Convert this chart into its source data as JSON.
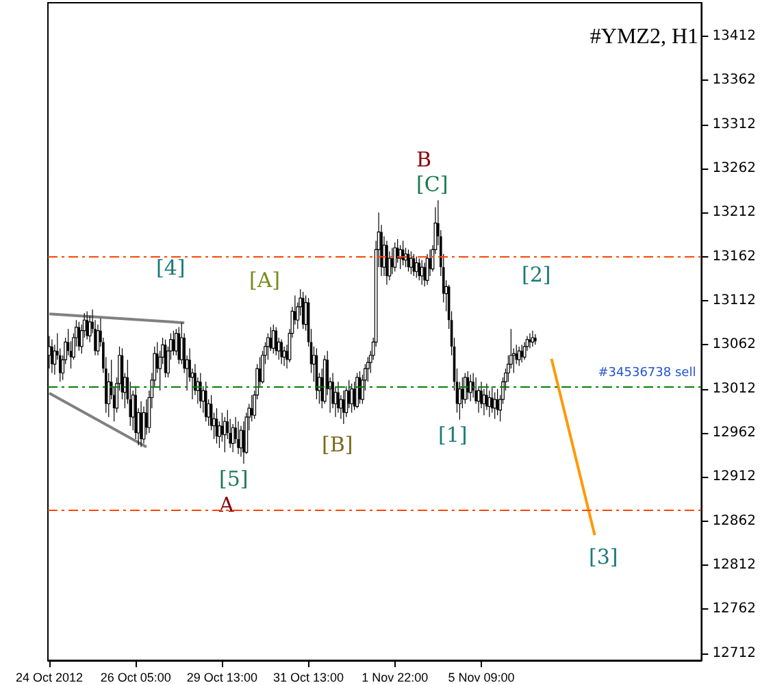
{
  "chart_data": {
    "type": "candlestick",
    "title": "#YMZ2, H1",
    "categories": [
      "24 Oct 2012",
      null,
      null,
      null,
      null,
      null,
      null,
      null,
      null,
      null,
      null,
      null,
      null,
      null,
      null,
      null,
      null,
      null,
      null,
      null,
      null,
      null,
      null,
      null,
      null,
      null,
      null,
      null,
      null,
      null,
      null,
      null,
      "26 Oct 05:00",
      null,
      null,
      null,
      null,
      null,
      null,
      null,
      null,
      null,
      null,
      null,
      null,
      null,
      null,
      null,
      null,
      null,
      null,
      null,
      null,
      null,
      null,
      null,
      null,
      null,
      null,
      null,
      null,
      null,
      null,
      null,
      "29 Oct 13:00",
      null,
      null,
      null,
      null,
      null,
      null,
      null,
      null,
      null,
      null,
      null,
      null,
      null,
      null,
      null,
      null,
      null,
      null,
      null,
      null,
      null,
      null,
      null,
      null,
      null,
      null,
      null,
      null,
      null,
      null,
      null,
      "31 Oct 13:00",
      null,
      null,
      null,
      null,
      null,
      null,
      null,
      null,
      null,
      null,
      null,
      null,
      null,
      null,
      null,
      null,
      null,
      null,
      null,
      null,
      null,
      null,
      null,
      null,
      null,
      null,
      null,
      null,
      null,
      null,
      null,
      "1 Nov 22:00",
      null,
      null,
      null,
      null,
      null,
      null,
      null,
      null,
      null,
      null,
      null,
      null,
      null,
      null,
      null,
      null,
      null,
      null,
      null,
      null,
      null,
      null,
      null,
      null,
      null,
      null,
      null,
      null,
      null,
      null,
      null,
      "5 Nov 09:00",
      null,
      null,
      null,
      null,
      null,
      null,
      null,
      null,
      null,
      null,
      null,
      null,
      null,
      null,
      null,
      null,
      null,
      null,
      null,
      null,
      null,
      null,
      null,
      null,
      null,
      null,
      null,
      null,
      null,
      null,
      null,
      null,
      null,
      null,
      null,
      null,
      null,
      null,
      null,
      null,
      null,
      null,
      null,
      null,
      null,
      null,
      null,
      null,
      null,
      null,
      null,
      null,
      null,
      null,
      null,
      null,
      null,
      null,
      null,
      null,
      null,
      null,
      null,
      null,
      null,
      null,
      null,
      null,
      null,
      null,
      null,
      null,
      null,
      null,
      null,
      null,
      null,
      null,
      null,
      null,
      null
    ],
    "series": [
      {
        "type": "candlestick",
        "color": "#000000",
        "ohlc": [
          [
            13050,
            13072,
            13035,
            13060
          ],
          [
            13060,
            13068,
            13030,
            13040
          ],
          [
            13040,
            13062,
            13028,
            13055
          ],
          [
            13055,
            13075,
            13045,
            13050
          ],
          [
            13050,
            13058,
            13020,
            13030
          ],
          [
            13030,
            13050,
            13022,
            13045
          ],
          [
            13045,
            13070,
            13040,
            13065
          ],
          [
            13065,
            13080,
            13050,
            13055
          ],
          [
            13055,
            13066,
            13035,
            13048
          ],
          [
            13048,
            13075,
            13045,
            13070
          ],
          [
            13070,
            13090,
            13060,
            13082
          ],
          [
            13082,
            13088,
            13055,
            13060
          ],
          [
            13060,
            13085,
            13052,
            13078
          ],
          [
            13078,
            13098,
            13070,
            13090
          ],
          [
            13090,
            13100,
            13068,
            13072
          ],
          [
            13072,
            13095,
            13065,
            13088
          ],
          [
            13088,
            13102,
            13075,
            13080
          ],
          [
            13080,
            13090,
            13050,
            13055
          ],
          [
            13055,
            13085,
            13050,
            13078
          ],
          [
            13078,
            13092,
            13060,
            13065
          ],
          [
            13065,
            13070,
            13030,
            13035
          ],
          [
            13035,
            13048,
            12985,
            12995
          ],
          [
            12995,
            13030,
            12980,
            13020
          ],
          [
            13020,
            13045,
            13000,
            13005
          ],
          [
            13005,
            13015,
            12975,
            12990
          ],
          [
            12990,
            13025,
            12985,
            13018
          ],
          [
            13018,
            13060,
            13010,
            13050
          ],
          [
            13050,
            13058,
            13000,
            13008
          ],
          [
            13008,
            13030,
            12990,
            13025
          ],
          [
            13025,
            13045,
            12995,
            13000
          ],
          [
            13000,
            13020,
            12970,
            12980
          ],
          [
            12980,
            13010,
            12965,
            13005
          ],
          [
            13005,
            13015,
            12955,
            12962
          ],
          [
            12962,
            12990,
            12948,
            12985
          ],
          [
            12985,
            12998,
            12946,
            12955
          ],
          [
            12955,
            12992,
            12950,
            12985
          ],
          [
            12985,
            13000,
            12960,
            12968
          ],
          [
            12968,
            13010,
            12962,
            13002
          ],
          [
            13002,
            13030,
            12990,
            13022
          ],
          [
            13022,
            13060,
            13015,
            13052
          ],
          [
            13052,
            13065,
            13030,
            13035
          ],
          [
            13035,
            13055,
            13010,
            13048
          ],
          [
            13048,
            13070,
            13040,
            13062
          ],
          [
            13062,
            13068,
            13025,
            13030
          ],
          [
            13030,
            13060,
            13025,
            13055
          ],
          [
            13055,
            13075,
            13045,
            13068
          ],
          [
            13068,
            13078,
            13050,
            13055
          ],
          [
            13055,
            13080,
            13050,
            13075
          ],
          [
            13075,
            13082,
            13040,
            13045
          ],
          [
            13045,
            13087,
            13040,
            13070
          ],
          [
            13070,
            13075,
            13030,
            13035
          ],
          [
            13035,
            13050,
            13010,
            13045
          ],
          [
            13045,
            13058,
            13020,
            13025
          ],
          [
            13025,
            13035,
            13000,
            13030
          ],
          [
            13030,
            13040,
            13005,
            13010
          ],
          [
            13010,
            13025,
            12995,
            13020
          ],
          [
            13020,
            13030,
            12990,
            12998
          ],
          [
            12998,
            13015,
            12985,
            13010
          ],
          [
            13010,
            13020,
            12975,
            12980
          ],
          [
            12980,
            13000,
            12970,
            12995
          ],
          [
            12995,
            13005,
            12965,
            12970
          ],
          [
            12970,
            12985,
            12955,
            12978
          ],
          [
            12978,
            12990,
            12950,
            12958
          ],
          [
            12958,
            12975,
            12945,
            12970
          ],
          [
            12970,
            12985,
            12952,
            12960
          ],
          [
            12960,
            12980,
            12940,
            12975
          ],
          [
            12975,
            12988,
            12955,
            12962
          ],
          [
            12962,
            12978,
            12945,
            12950
          ],
          [
            12950,
            12972,
            12940,
            12968
          ],
          [
            12968,
            12980,
            12950,
            12955
          ],
          [
            12955,
            12975,
            12938,
            12945
          ],
          [
            12945,
            12970,
            12935,
            12965
          ],
          [
            12965,
            12975,
            12927,
            12940
          ],
          [
            12940,
            12985,
            12938,
            12980
          ],
          [
            12980,
            12995,
            12965,
            12990
          ],
          [
            12990,
            13005,
            12975,
            12982
          ],
          [
            12982,
            13010,
            12978,
            13005
          ],
          [
            13005,
            13040,
            13000,
            13035
          ],
          [
            13035,
            13048,
            13015,
            13020
          ],
          [
            13020,
            13055,
            13018,
            13050
          ],
          [
            13050,
            13065,
            13040,
            13060
          ],
          [
            13060,
            13075,
            13045,
            13070
          ],
          [
            13070,
            13082,
            13055,
            13058
          ],
          [
            13058,
            13085,
            13052,
            13078
          ],
          [
            13078,
            13082,
            13050,
            13055
          ],
          [
            13055,
            13070,
            13045,
            13065
          ],
          [
            13065,
            13068,
            13040,
            13048
          ],
          [
            13048,
            13060,
            13038,
            13055
          ],
          [
            13055,
            13062,
            13035,
            13045
          ],
          [
            13045,
            13080,
            13042,
            13075
          ],
          [
            13075,
            13105,
            13070,
            13100
          ],
          [
            13100,
            13118,
            13085,
            13090
          ],
          [
            13090,
            13110,
            13080,
            13105
          ],
          [
            13105,
            13125,
            13095,
            13115
          ],
          [
            13115,
            13122,
            13080,
            13085
          ],
          [
            13085,
            13118,
            13078,
            13110
          ],
          [
            13110,
            13115,
            13060,
            13065
          ],
          [
            13065,
            13080,
            13030,
            13040
          ],
          [
            13040,
            13060,
            13020,
            13050
          ],
          [
            13050,
            13058,
            13000,
            13010
          ],
          [
            13010,
            13030,
            12995,
            13025
          ],
          [
            13025,
            13035,
            12990,
            12998
          ],
          [
            12998,
            13050,
            12995,
            13045
          ],
          [
            13045,
            13055,
            13005,
            13012
          ],
          [
            13012,
            13025,
            12985,
            13020
          ],
          [
            13020,
            13030,
            12990,
            12995
          ],
          [
            12995,
            13015,
            12980,
            13008
          ],
          [
            13008,
            13020,
            12985,
            12990
          ],
          [
            12990,
            13005,
            12978,
            13000
          ],
          [
            13000,
            13010,
            12972,
            12985
          ],
          [
            12985,
            13015,
            12980,
            13010
          ],
          [
            13010,
            13022,
            12990,
            12995
          ],
          [
            12995,
            13018,
            12985,
            13012
          ],
          [
            13012,
            13020,
            12988,
            12992
          ],
          [
            12992,
            13030,
            12990,
            13025
          ],
          [
            13025,
            13032,
            12995,
            13000
          ],
          [
            13000,
            13028,
            12995,
            13022
          ],
          [
            13022,
            13040,
            13010,
            13035
          ],
          [
            13035,
            13048,
            13020,
            13042
          ],
          [
            13042,
            13055,
            13030,
            13050
          ],
          [
            13050,
            13070,
            13045,
            13065
          ],
          [
            13065,
            13180,
            13060,
            13170
          ],
          [
            13170,
            13212,
            13150,
            13190
          ],
          [
            13190,
            13198,
            13140,
            13150
          ],
          [
            13150,
            13185,
            13140,
            13175
          ],
          [
            13175,
            13180,
            13130,
            13140
          ],
          [
            13140,
            13168,
            13135,
            13160
          ],
          [
            13160,
            13172,
            13142,
            13150
          ],
          [
            13150,
            13178,
            13145,
            13172
          ],
          [
            13172,
            13182,
            13155,
            13160
          ],
          [
            13160,
            13175,
            13148,
            13170
          ],
          [
            13170,
            13180,
            13152,
            13158
          ],
          [
            13158,
            13172,
            13150,
            13165
          ],
          [
            13165,
            13170,
            13145,
            13150
          ],
          [
            13150,
            13168,
            13142,
            13160
          ],
          [
            13160,
            13165,
            13140,
            13145
          ],
          [
            13145,
            13162,
            13138,
            13155
          ],
          [
            13155,
            13160,
            13135,
            13140
          ],
          [
            13140,
            13158,
            13130,
            13150
          ],
          [
            13150,
            13155,
            13128,
            13135
          ],
          [
            13135,
            13165,
            13130,
            13160
          ],
          [
            13160,
            13170,
            13140,
            13148
          ],
          [
            13148,
            13175,
            13145,
            13170
          ],
          [
            13170,
            13218,
            13165,
            13200
          ],
          [
            13200,
            13226,
            13175,
            13185
          ],
          [
            13185,
            13192,
            13140,
            13150
          ],
          [
            13150,
            13165,
            13110,
            13120
          ],
          [
            13120,
            13135,
            13100,
            13128
          ],
          [
            13128,
            13130,
            13080,
            13090
          ],
          [
            13090,
            13100,
            13050,
            13060
          ],
          [
            13060,
            13070,
            13010,
            13020
          ],
          [
            13020,
            13035,
            12985,
            12995
          ],
          [
            12995,
            13020,
            12977,
            13012
          ],
          [
            13012,
            13025,
            12990,
            13000
          ],
          [
            13000,
            13030,
            12995,
            13025
          ],
          [
            13025,
            13032,
            13000,
            13008
          ],
          [
            13008,
            13028,
            12998,
            13020
          ],
          [
            13020,
            13030,
            13002,
            13010
          ],
          [
            13010,
            13025,
            12995,
            12998
          ],
          [
            12998,
            13015,
            12985,
            13010
          ],
          [
            13010,
            13020,
            12990,
            12995
          ],
          [
            12995,
            13012,
            12982,
            13005
          ],
          [
            13005,
            13018,
            12988,
            12992
          ],
          [
            12992,
            13010,
            12980,
            13002
          ],
          [
            13002,
            13015,
            12985,
            12990
          ],
          [
            12990,
            13008,
            12978,
            13000
          ],
          [
            13000,
            13012,
            12982,
            12988
          ],
          [
            12988,
            13005,
            12975,
            13000
          ],
          [
            13000,
            13025,
            12995,
            13020
          ],
          [
            13020,
            13035,
            13010,
            13030
          ],
          [
            13030,
            13050,
            13020,
            13040
          ],
          [
            13040,
            13080,
            13035,
            13050
          ],
          [
            13050,
            13058,
            13030,
            13052
          ],
          [
            13052,
            13062,
            13040,
            13045
          ],
          [
            13045,
            13060,
            13038,
            13055
          ],
          [
            13055,
            13062,
            13042,
            13048
          ],
          [
            13048,
            13065,
            13045,
            13060
          ],
          [
            13060,
            13072,
            13055,
            13068
          ],
          [
            13068,
            13075,
            13058,
            13065
          ],
          [
            13065,
            13078,
            13060,
            13070
          ],
          [
            13070,
            13074,
            13062,
            13066
          ],
          null,
          null,
          null,
          null,
          null,
          null,
          null,
          null,
          null,
          null,
          null,
          null,
          null,
          null,
          null,
          null,
          null,
          null,
          null,
          null,
          null,
          null,
          null,
          null,
          null,
          null,
          null,
          null,
          null,
          null,
          null,
          null,
          null,
          null,
          null,
          null,
          null,
          null,
          null,
          null,
          null,
          null,
          null,
          null,
          null,
          null,
          null,
          null,
          null,
          null,
          null,
          null,
          null,
          null,
          null,
          null,
          null,
          null,
          null,
          null,
          null
        ]
      },
      {
        "type": "line",
        "color": "#808080",
        "values": [
          13097,
          null,
          null,
          null,
          null,
          null,
          null,
          null,
          null,
          null,
          null,
          null,
          null,
          null,
          null,
          null,
          null,
          null,
          null,
          null,
          null,
          null,
          null,
          null,
          null,
          null,
          null,
          null,
          null,
          null,
          null,
          null,
          null,
          null,
          null,
          null,
          null,
          null,
          null,
          null,
          null,
          null,
          null,
          null,
          null,
          null,
          null,
          null,
          null,
          null,
          13087,
          null,
          null,
          null,
          null,
          null,
          null,
          null,
          null,
          null,
          null,
          null,
          null,
          null,
          null,
          null,
          null,
          null,
          null,
          null,
          null,
          null,
          null,
          null,
          null,
          null,
          null,
          null,
          null,
          null,
          null,
          null,
          null,
          null,
          null,
          null,
          null,
          null,
          null,
          null,
          null,
          null,
          null,
          null,
          null,
          null,
          null,
          null,
          null,
          null,
          null,
          null,
          null,
          null,
          null,
          null,
          null,
          null,
          null,
          null,
          null,
          null,
          null,
          null,
          null,
          null,
          null,
          null,
          null,
          null,
          null,
          null,
          null,
          null,
          null,
          null,
          null,
          null,
          null,
          null,
          null,
          null,
          null,
          null,
          null,
          null,
          null,
          null,
          null,
          null,
          null,
          null,
          null,
          null,
          null,
          null,
          null,
          null,
          null,
          null,
          null,
          null,
          null,
          null,
          null,
          null,
          null,
          null,
          null,
          null,
          null,
          null,
          null,
          null,
          null,
          null,
          null,
          null,
          null,
          null,
          null,
          null,
          null,
          null,
          null,
          null,
          null,
          null,
          null,
          null,
          null,
          null,
          null,
          null,
          null,
          null,
          null,
          null,
          null,
          null,
          null,
          null,
          null,
          null,
          null,
          null,
          null,
          null,
          null,
          null,
          null,
          null,
          null,
          null,
          null,
          null,
          null,
          null,
          null,
          null,
          null,
          null,
          null,
          null,
          null,
          null,
          null,
          null,
          null,
          null,
          null,
          null,
          null,
          null,
          null,
          null,
          null,
          null,
          null,
          null,
          null,
          null,
          null,
          null,
          null,
          null,
          null,
          null,
          null,
          null,
          null,
          null
        ]
      },
      {
        "type": "line",
        "color": "#808080",
        "values": [
          13007,
          null,
          null,
          null,
          null,
          null,
          null,
          null,
          null,
          null,
          null,
          null,
          null,
          null,
          null,
          null,
          null,
          null,
          null,
          null,
          null,
          null,
          null,
          null,
          null,
          null,
          null,
          null,
          null,
          null,
          null,
          null,
          null,
          null,
          null,
          null,
          12946,
          null,
          null,
          null,
          null,
          null,
          null,
          null,
          null,
          null,
          null,
          null,
          null,
          null,
          null,
          null,
          null,
          null,
          null,
          null,
          null,
          null,
          null,
          null,
          null,
          null,
          null,
          null,
          null,
          null,
          null,
          null,
          null,
          null,
          null,
          null,
          null,
          null,
          null,
          null,
          null,
          null,
          null,
          null,
          null,
          null,
          null,
          null,
          null,
          null,
          null,
          null,
          null,
          null,
          null,
          null,
          null,
          null,
          null,
          null,
          null,
          null,
          null,
          null,
          null,
          null,
          null,
          null,
          null,
          null,
          null,
          null,
          null,
          null,
          null,
          null,
          null,
          null,
          null,
          null,
          null,
          null,
          null,
          null,
          null,
          null,
          null,
          null,
          null,
          null,
          null,
          null,
          null,
          null,
          null,
          null,
          null,
          null,
          null,
          null,
          null,
          null,
          null,
          null,
          null,
          null,
          null,
          null,
          null,
          null,
          null,
          null,
          null,
          null,
          null,
          null,
          null,
          null,
          null,
          null,
          null,
          null,
          null,
          null,
          null,
          null,
          null,
          null,
          null,
          null,
          null,
          null,
          null,
          null,
          null,
          null,
          null,
          null,
          null,
          null,
          null,
          null,
          null,
          null,
          null,
          null,
          null,
          null,
          null,
          null,
          null,
          null,
          null,
          null,
          null,
          null,
          null,
          null,
          null,
          null,
          null,
          null,
          null,
          null,
          null,
          null,
          null,
          null,
          null,
          null,
          null,
          null,
          null,
          null,
          null,
          null,
          null,
          null,
          null,
          null,
          null,
          null,
          null,
          null,
          null,
          null,
          null,
          null,
          null,
          null,
          null,
          null,
          null,
          null,
          null,
          null,
          null,
          null,
          null,
          null,
          null,
          null,
          null,
          null,
          null,
          null
        ]
      },
      {
        "type": "line",
        "color": "#ff9900",
        "values": [
          null,
          null,
          null,
          null,
          null,
          null,
          null,
          null,
          null,
          null,
          null,
          null,
          null,
          null,
          null,
          null,
          null,
          null,
          null,
          null,
          null,
          null,
          null,
          null,
          null,
          null,
          null,
          null,
          null,
          null,
          null,
          null,
          null,
          null,
          null,
          null,
          null,
          null,
          null,
          null,
          null,
          null,
          null,
          null,
          null,
          null,
          null,
          null,
          null,
          null,
          null,
          null,
          null,
          null,
          null,
          null,
          null,
          null,
          null,
          null,
          null,
          null,
          null,
          null,
          null,
          null,
          null,
          null,
          null,
          null,
          null,
          null,
          null,
          null,
          null,
          null,
          null,
          null,
          null,
          null,
          null,
          null,
          null,
          null,
          null,
          null,
          null,
          null,
          null,
          null,
          null,
          null,
          null,
          null,
          null,
          null,
          null,
          null,
          null,
          null,
          null,
          null,
          null,
          null,
          null,
          null,
          null,
          null,
          null,
          null,
          null,
          null,
          null,
          null,
          null,
          null,
          null,
          null,
          null,
          null,
          null,
          null,
          null,
          null,
          null,
          null,
          null,
          null,
          null,
          null,
          null,
          null,
          null,
          null,
          null,
          null,
          null,
          null,
          null,
          null,
          null,
          null,
          null,
          null,
          null,
          null,
          null,
          null,
          null,
          null,
          null,
          null,
          null,
          null,
          null,
          null,
          null,
          null,
          null,
          null,
          null,
          null,
          null,
          null,
          null,
          null,
          null,
          null,
          null,
          null,
          null,
          null,
          null,
          null,
          null,
          null,
          null,
          null,
          null,
          null,
          null,
          null,
          null,
          null,
          null,
          null,
          13046,
          null,
          null,
          null,
          null,
          null,
          null,
          null,
          null,
          null,
          null,
          null,
          null,
          null,
          null,
          null,
          12846,
          null,
          null,
          null,
          null,
          null,
          null,
          null,
          null,
          null,
          null,
          null,
          null,
          null,
          null,
          null,
          null,
          null,
          null,
          null,
          null,
          null,
          null,
          null,
          null,
          null,
          null,
          null,
          null,
          null,
          null,
          null,
          null,
          null,
          null,
          null,
          null,
          null,
          null,
          null
        ]
      }
    ],
    "ylim": [
      12704,
      13450
    ],
    "yticks": [
      12712,
      12762,
      12812,
      12862,
      12912,
      12962,
      13012,
      13062,
      13112,
      13162,
      13212,
      13262,
      13312,
      13362,
      13412
    ],
    "ref_lines": [
      {
        "axis": "y",
        "value": 13162,
        "color": "#ff4500",
        "line_style": "dashed"
      },
      {
        "axis": "y",
        "value": 12875,
        "color": "#ff4500",
        "line_style": "dashed"
      },
      {
        "axis": "y",
        "value": 13015,
        "color": "#008000",
        "line_style": "dashed",
        "label": "#34536738 sell"
      }
    ],
    "annotations": [
      "B",
      "[C]",
      "[A]",
      "[B]",
      "[4]",
      "[5]",
      "A",
      "[1]",
      "[2]",
      "[3]"
    ],
    "marker": "none",
    "line_style": "solid",
    "grid": false
  }
}
